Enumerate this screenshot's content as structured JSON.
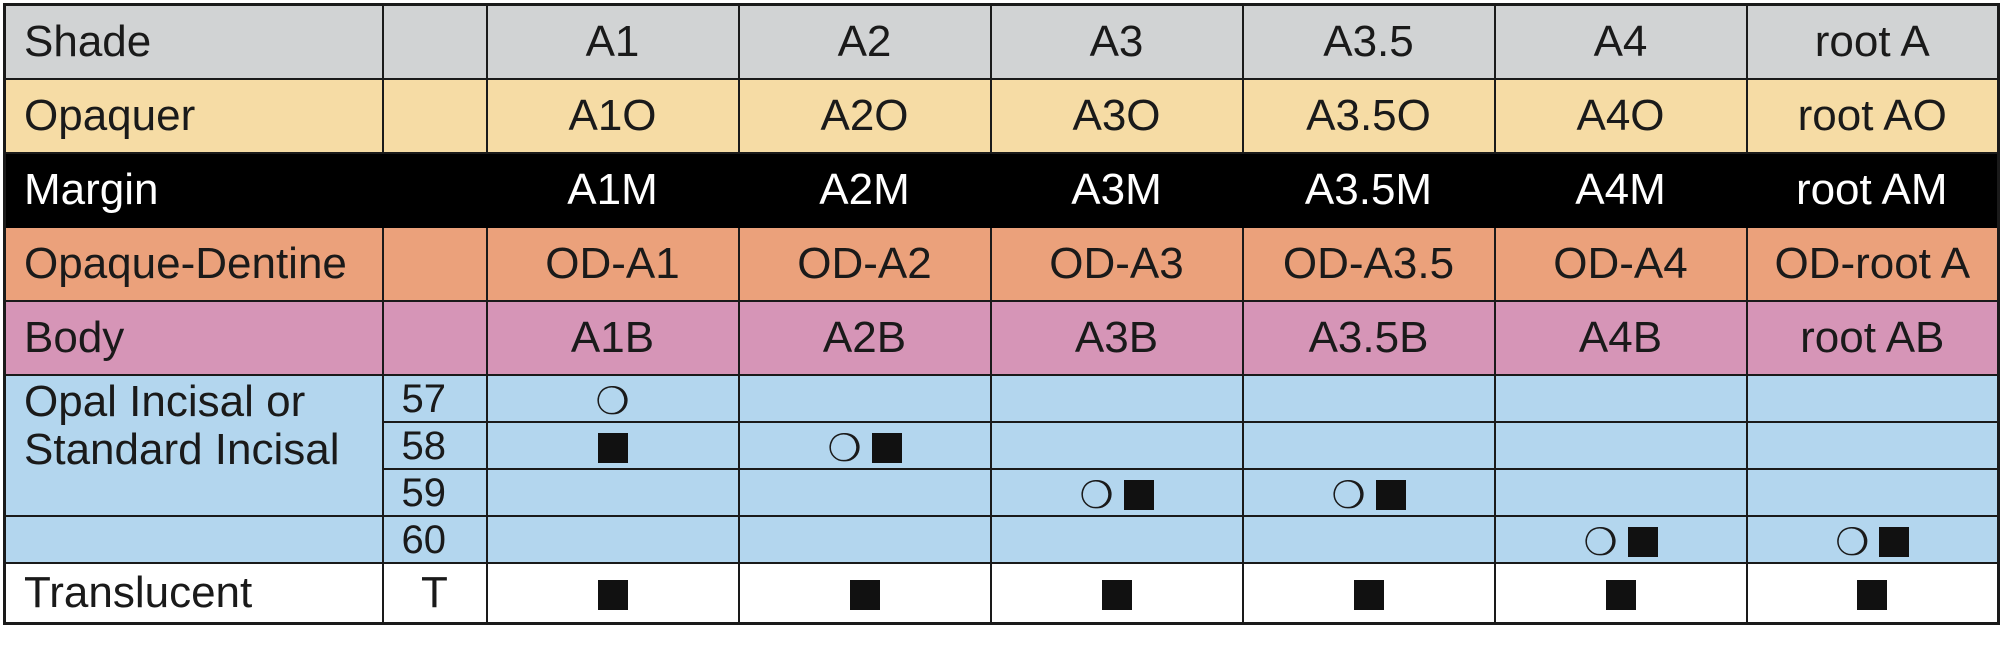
{
  "shade_row": {
    "label": "Shade",
    "code": "",
    "cells": [
      "A1",
      "A2",
      "A3",
      "A3.5",
      "A4",
      "root A"
    ]
  },
  "opaquer_row": {
    "label": "Opaquer",
    "code": "",
    "cells": [
      "A1O",
      "A2O",
      "A3O",
      "A3.5O",
      "A4O",
      "root AO"
    ]
  },
  "margin_row": {
    "label": "Margin",
    "code": "",
    "cells": [
      "A1M",
      "A2M",
      "A3M",
      "A3.5M",
      "A4M",
      "root AM"
    ]
  },
  "od_row": {
    "label": "Opaque-Dentine",
    "code": "",
    "cells": [
      "OD-A1",
      "OD-A2",
      "OD-A3",
      "OD-A3.5",
      "OD-A4",
      "OD-root A"
    ]
  },
  "body_row": {
    "label": "Body",
    "code": "",
    "cells": [
      "A1B",
      "A2B",
      "A3B",
      "A3.5B",
      "A4B",
      "root AB"
    ]
  },
  "incisal": {
    "label": "Opal Incisal or Standard Incisal",
    "rows": [
      {
        "num": "57",
        "marks": [
          "opal",
          "",
          "",
          "",
          "",
          ""
        ]
      },
      {
        "num": "58",
        "marks": [
          "standard",
          "opal+standard",
          "",
          "",
          "",
          ""
        ]
      },
      {
        "num": "59",
        "marks": [
          "",
          "",
          "opal+standard",
          "opal+standard",
          "",
          ""
        ]
      },
      {
        "num": "60",
        "marks": [
          "",
          "",
          "",
          "",
          "opal+standard",
          "opal+standard"
        ]
      }
    ]
  },
  "translucent_row": {
    "label": "Translucent",
    "code": "T",
    "marks": [
      "standard",
      "standard",
      "standard",
      "standard",
      "standard",
      "standard"
    ]
  },
  "symbols": {
    "opal": "❍",
    "standard_icon": "filled-square-icon",
    "opal_icon": "crescent-circle-icon"
  },
  "colors": {
    "shade": "#d1d3d4",
    "opaquer": "#f6dca5",
    "margin": "#000000",
    "opaque_dentine": "#eba17b",
    "body": "#d695b7",
    "incisal": "#b3d6ee",
    "translucent": "#ffffff"
  }
}
